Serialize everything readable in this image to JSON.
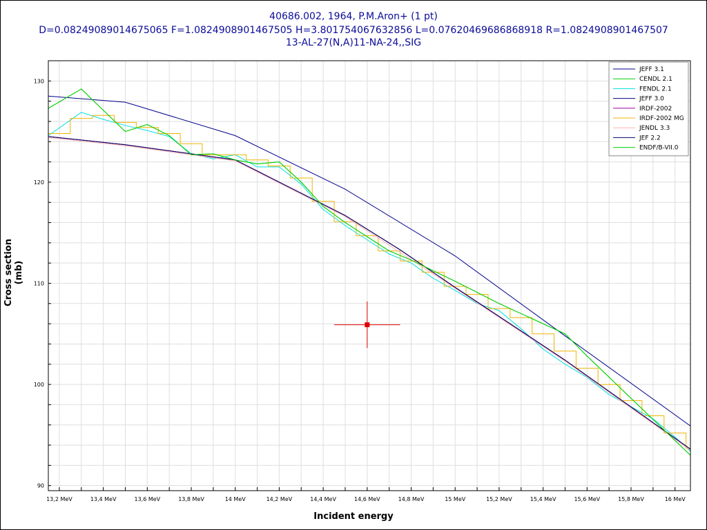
{
  "chart_data": {
    "type": "line",
    "title_lines": [
      "40686.002, 1964, P.M.Aron+ (1 pt)",
      "D=0.08249089014675065 F=1.0824908901467505 H=3.801754067632856 L=0.07620469686868918 R=1.0824908901467507",
      "13-AL-27(N,A)11-NA-24,,SIG"
    ],
    "xlabel": "Incident energy",
    "ylabel": "Cross section (mb)",
    "xlim": [
      13.15,
      16.07
    ],
    "ylim": [
      89.5,
      132
    ],
    "grid": true,
    "legend_position": "top-right",
    "x_ticks": [
      {
        "value": 13.2,
        "label": "13,2 MeV"
      },
      {
        "value": 13.4,
        "label": "13,4 MeV"
      },
      {
        "value": 13.6,
        "label": "13,6 MeV"
      },
      {
        "value": 13.8,
        "label": "13,8 MeV"
      },
      {
        "value": 14.0,
        "label": "14 MeV"
      },
      {
        "value": 14.2,
        "label": "14,2 MeV"
      },
      {
        "value": 14.4,
        "label": "14,4 MeV"
      },
      {
        "value": 14.6,
        "label": "14,6 MeV"
      },
      {
        "value": 14.8,
        "label": "14,8 MeV"
      },
      {
        "value": 15.0,
        "label": "15 MeV"
      },
      {
        "value": 15.2,
        "label": "15,2 MeV"
      },
      {
        "value": 15.4,
        "label": "15,4 MeV"
      },
      {
        "value": 15.6,
        "label": "15,6 MeV"
      },
      {
        "value": 15.8,
        "label": "15,8 MeV"
      },
      {
        "value": 16.0,
        "label": "16 MeV"
      }
    ],
    "y_ticks": [
      {
        "value": 90,
        "label": "90"
      },
      {
        "value": 100,
        "label": "100"
      },
      {
        "value": 110,
        "label": "110"
      },
      {
        "value": 120,
        "label": "120"
      },
      {
        "value": 130,
        "label": "130"
      }
    ],
    "series": [
      {
        "name": "JEFF 3.1",
        "color": "#00008b",
        "step": false,
        "x": [
          13.15,
          13.5,
          14.0,
          14.5,
          15.0,
          15.5,
          16.07
        ],
        "y": [
          128.5,
          127.9,
          124.6,
          119.3,
          112.7,
          104.8,
          95.9
        ]
      },
      {
        "name": "CENDL 2.1",
        "color": "#00c800",
        "step": false,
        "x": [
          13.15,
          13.3,
          13.5,
          13.6,
          13.7,
          13.8,
          13.9,
          14.0,
          14.1,
          14.2,
          14.3,
          14.4,
          14.5,
          14.6,
          14.7,
          14.8,
          15.0,
          15.2,
          15.5,
          15.6,
          16.07
        ],
        "y": [
          127.3,
          129.2,
          125.0,
          125.7,
          124.6,
          122.7,
          122.8,
          122.2,
          121.8,
          122.0,
          120.0,
          117.6,
          116.0,
          114.6,
          113.2,
          112.3,
          110.2,
          108.0,
          105.0,
          102.8,
          93.0
        ]
      },
      {
        "name": "FENDL 2.1",
        "color": "#00e0e0",
        "step": false,
        "x": [
          13.15,
          13.3,
          13.4,
          13.5,
          13.6,
          13.7,
          13.8,
          13.9,
          14.0,
          14.1,
          14.2,
          14.3,
          14.4,
          14.5,
          14.6,
          14.7,
          14.8,
          14.9,
          15.0,
          15.1,
          15.2,
          15.3,
          15.4,
          15.5,
          15.6,
          15.7,
          15.8,
          15.9,
          16.0,
          16.07
        ],
        "y": [
          124.6,
          126.9,
          126.2,
          125.6,
          125.1,
          124.5,
          122.8,
          122.3,
          122.7,
          121.5,
          121.5,
          119.8,
          117.3,
          115.7,
          114.3,
          112.9,
          112.0,
          110.5,
          109.3,
          108.0,
          107.3,
          105.5,
          103.5,
          102.0,
          100.7,
          99.0,
          97.8,
          96.6,
          94.8,
          93.4
        ]
      },
      {
        "name": "JEFF 3.0",
        "color": "#000080",
        "step": false,
        "x": [
          13.15,
          13.5,
          14.0,
          14.5,
          14.75,
          15.0,
          15.5,
          16.07
        ],
        "y": [
          124.5,
          123.7,
          122.2,
          116.7,
          113.3,
          109.6,
          102.4,
          93.6
        ]
      },
      {
        "name": "IRDF-2002",
        "color": "#a000a0",
        "step": false,
        "x": [
          13.15,
          13.5,
          14.0,
          14.5,
          14.75,
          15.0,
          15.5,
          16.07
        ],
        "y": [
          124.5,
          123.7,
          122.2,
          116.7,
          113.3,
          109.6,
          102.4,
          93.6
        ]
      },
      {
        "name": "IRDF-2002 MG",
        "color": "#f0b400",
        "step": true,
        "x": [
          13.15,
          13.25,
          13.35,
          13.45,
          13.55,
          13.65,
          13.75,
          13.85,
          13.95,
          14.05,
          14.15,
          14.25,
          14.35,
          14.45,
          14.55,
          14.65,
          14.75,
          14.85,
          14.95,
          15.05,
          15.15,
          15.25,
          15.35,
          15.45,
          15.55,
          15.65,
          15.75,
          15.85,
          15.95,
          16.05,
          16.07
        ],
        "y": [
          124.8,
          126.3,
          126.6,
          125.9,
          125.4,
          124.8,
          123.8,
          122.7,
          122.7,
          122.2,
          121.6,
          120.4,
          118.1,
          116.1,
          114.7,
          113.2,
          112.2,
          111.1,
          109.7,
          108.9,
          107.5,
          106.6,
          105.0,
          103.3,
          101.6,
          100.0,
          98.4,
          96.9,
          95.2,
          93.7,
          93.7
        ]
      },
      {
        "name": "JENDL 3.3",
        "color": "#ffb0b0",
        "step": false,
        "x": [
          13.15,
          13.5,
          14.0,
          14.5,
          15.0,
          15.5,
          16.07
        ],
        "y": [
          124.4,
          123.6,
          122.1,
          116.6,
          109.5,
          102.3,
          93.5
        ]
      },
      {
        "name": "JEF 2.2",
        "color": "#000060",
        "step": false,
        "x": [
          13.15,
          13.5,
          14.0,
          14.5,
          14.75,
          15.0,
          15.5,
          16.07
        ],
        "y": [
          124.5,
          123.7,
          122.2,
          116.7,
          113.3,
          109.6,
          102.4,
          93.6
        ]
      },
      {
        "name": "ENDF/B-VII.0",
        "color": "#00d000",
        "step": false,
        "x": [
          13.15,
          13.3,
          13.5,
          13.6,
          13.7,
          13.8,
          13.9,
          14.0,
          14.1,
          14.2,
          14.3,
          14.4,
          14.5,
          14.6,
          14.7,
          14.8,
          15.0,
          15.2,
          15.5,
          15.6,
          16.07
        ],
        "y": [
          127.3,
          129.2,
          125.0,
          125.7,
          124.6,
          122.7,
          122.8,
          122.2,
          121.8,
          122.0,
          120.0,
          117.6,
          116.0,
          114.6,
          113.2,
          112.3,
          110.2,
          108.0,
          105.0,
          102.8,
          93.0
        ]
      }
    ],
    "experimental_points": [
      {
        "x": 14.6,
        "y": 105.9,
        "xerr": 0.15,
        "yerr": 2.3,
        "color": "#dd0000"
      }
    ]
  }
}
